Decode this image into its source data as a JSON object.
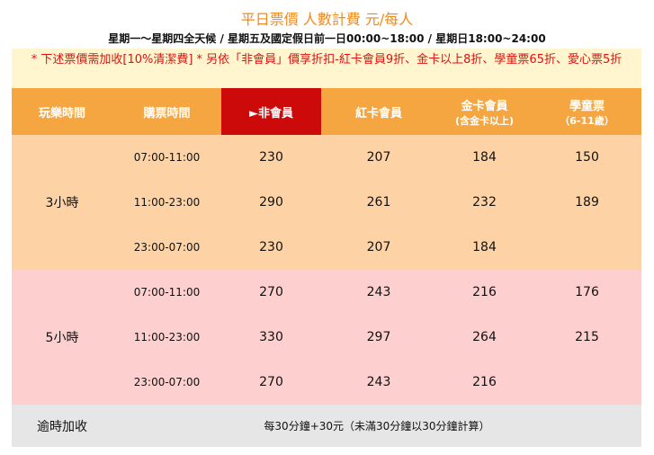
{
  "header": {
    "title": "平日票價 人數計費 元/每人",
    "subtitle": "星期一～星期四全天候 / 星期五及國定假日前一日00:00~18:00 / 星期日18:00~24:00",
    "note": "* 下述票價需加收[10%清潔費] * 另依「非會員」價享折扣-紅卡會員9折、金卡以上8折、學童票65折、愛心票5折"
  },
  "table": {
    "headers": [
      {
        "label": "玩樂時間"
      },
      {
        "label": "購票時間"
      },
      {
        "label": "►非會員"
      },
      {
        "label": "紅卡會員"
      },
      {
        "label": "金卡會員",
        "sub": "(含金卡以上)"
      },
      {
        "label": "學童票",
        "sub": "（6-11歲）"
      }
    ],
    "groups": [
      {
        "duration": "3小時",
        "rows": [
          {
            "time": "07:00-11:00",
            "prices": [
              230,
              207,
              184,
              150
            ]
          },
          {
            "time": "11:00-23:00",
            "prices": [
              290,
              261,
              232,
              189
            ]
          },
          {
            "time": "23:00-07:00",
            "prices": [
              230,
              207,
              184,
              null
            ]
          }
        ]
      },
      {
        "duration": "5小時",
        "rows": [
          {
            "time": "07:00-11:00",
            "prices": [
              270,
              243,
              216,
              176
            ]
          },
          {
            "time": "11:00-23:00",
            "prices": [
              330,
              297,
              264,
              215
            ]
          },
          {
            "time": "23:00-07:00",
            "prices": [
              270,
              243,
              216,
              null
            ]
          }
        ]
      }
    ],
    "overtime": {
      "label": "逾時加收",
      "text": "每30分鐘+30元（未滿30分鐘以30分鐘計算）"
    }
  }
}
